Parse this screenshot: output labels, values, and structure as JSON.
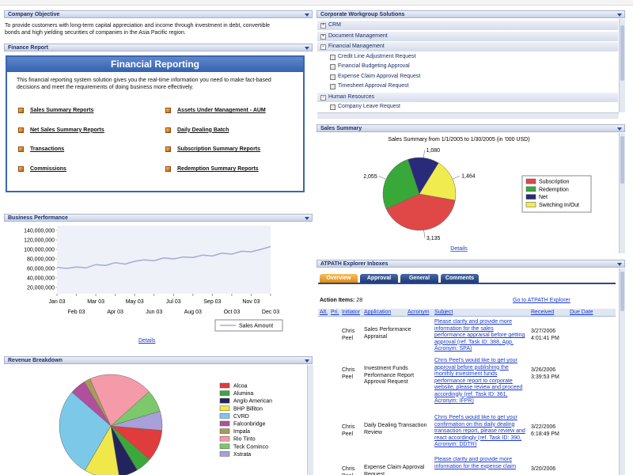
{
  "company_objective": {
    "title": "Company Objective",
    "text": "To provide customers with long-term capital appreciation and income through investment in debt, convertible bonds and high yielding securities of companies in the Asia Pacific region."
  },
  "finance_report": {
    "title": "Finance Report",
    "box_title": "Financial Reporting",
    "description": "This financial reporting system solution gives you the real-time information you need to make fact-based decisions and meet the requirements of doing business more effectively.",
    "links": [
      "Sales Summary Reports",
      "Assets Under Management - AUM",
      "Net Sales Summary Reports",
      "Daily Dealing Batch",
      "Transactions",
      "Subscription Summary Reports",
      "Commissions",
      "Redemption Summary Reports"
    ]
  },
  "business_performance": {
    "title": "Business Performance",
    "chart": {
      "type": "line",
      "categories": [
        "Jan 03",
        null,
        "Feb 03",
        null,
        "Mar 03",
        null,
        "Apr 03",
        null,
        "May 03",
        null,
        "Jun 03",
        null,
        "Jul 03",
        null,
        "Aug 03",
        null,
        "Sep 03",
        null,
        "Oct 03",
        null,
        "Nov 03",
        null,
        "Dec 03"
      ],
      "series": [
        {
          "name": "Sales Amount",
          "color": "#a4abd6",
          "values": [
            62000000,
            60000000,
            63000000,
            61000000,
            68000000,
            66000000,
            72000000,
            69000000,
            75000000,
            78000000,
            76000000,
            82000000,
            80000000,
            84000000,
            83000000,
            88000000,
            86000000,
            92000000,
            90000000,
            96000000,
            95000000,
            100000000,
            106000000
          ]
        }
      ],
      "ylim": [
        20000000,
        140000000
      ],
      "yticks": [
        {
          "value": 20000000,
          "label": "20,000,000"
        },
        {
          "value": 40000000,
          "label": "40,000,000"
        },
        {
          "value": 60000000,
          "label": "60,000,000"
        },
        {
          "value": 80000000,
          "label": "80,000,000"
        },
        {
          "value": 100000000,
          "label": "100,000,000"
        },
        {
          "value": 120000000,
          "label": "120,000,000"
        },
        {
          "value": 140000000,
          "label": "140,000,000"
        }
      ],
      "grid": false
    },
    "details": "Details"
  },
  "revenue_breakdown": {
    "title": "Revenue Breakdown",
    "chart": {
      "type": "pie",
      "categories": [
        "Alcoa",
        "Alumina",
        "Anglo American",
        "BHP Billiton",
        "CVRD",
        "Falconbridge",
        "Impala",
        "Rio Tinto",
        "Teck Cominco",
        "Xstrata"
      ],
      "values": [
        10,
        5,
        6,
        11,
        28,
        5,
        2,
        20,
        7,
        6
      ],
      "colors": [
        "#e03c3c",
        "#3aa83a",
        "#23235e",
        "#f0e84a",
        "#7cc8e8",
        "#b0509c",
        "#a89a5a",
        "#f49aa8",
        "#7cc86a",
        "#a8a0d8"
      ]
    }
  },
  "workgroup": {
    "title": "Corporate Workgroup Solutions",
    "items": [
      {
        "label": "CRM"
      },
      {
        "label": "Document Management"
      },
      {
        "label": "Financial Management",
        "children": [
          "Credit Line Adjustment Request",
          "Financial Budgeting Approval",
          "Expense Claim Approval Request",
          "Timesheet Approval Request"
        ]
      },
      {
        "label": "Human Resources",
        "children": [
          "Company Leave Request"
        ]
      }
    ]
  },
  "sales_summary": {
    "title": "Sales Summary",
    "chart": {
      "type": "pie",
      "title": "Sales Summary from 1/1/2005 to 1/30/2005 (in '000 USD)",
      "categories": [
        "Subscription",
        "Redemption",
        "Net",
        "Switching In/Out"
      ],
      "values": [
        3135,
        2055,
        1080,
        1464
      ],
      "value_labels": [
        "3,135",
        "2,055",
        "1,080",
        "1,464"
      ],
      "colors": [
        "#e04848",
        "#38a838",
        "#2a2a7a",
        "#f0ec50"
      ]
    },
    "details": "Details"
  },
  "inbox": {
    "title": "ATPATH Explorer Inboxes",
    "tabs": [
      "Overview",
      "Approval",
      "General",
      "Comments"
    ],
    "action_items": {
      "label": "Action Items:",
      "count": 28
    },
    "explorer_link": "Go to ATPATH Explorer",
    "columns": [
      "Alt.",
      "Pri.",
      "Initiator",
      "Application",
      "Acronym",
      "Subject",
      "Received",
      "Due Date"
    ],
    "rows": [
      [
        "Chris Peel",
        "Sales Performance Appraisal",
        "Please clarify and provide more information for the sales performance appraisal before getting approval (ref. Task ID: 388, App. Acronym: SPA)",
        "3/27/2006 4:01:41 PM"
      ],
      [
        "Chris Peel",
        "Investment Funds Performance Report Approval Request",
        "Chris Peel's would like to get your approval before publishing the monthly investment funds performance report to corporate website, please review and proceed accordingly (ref. Task ID: 361, Acronym: IFPR)",
        "3/26/2006 3:39:53 PM"
      ],
      [
        "Chris Peel",
        "Daily Dealing Transaction Review",
        "Chris Peel's would like to get your confirmation on this daily dealing transaction report, please review and react accordingly (ref. Task ID: 390, Acronym: DDTR)",
        "3/22/2006 6:18:49 PM"
      ],
      [
        "Chris Peel",
        "Expense Claim Approval Request",
        "Please clarify and provide more information for the expense claim",
        "3/20/2006"
      ]
    ]
  }
}
